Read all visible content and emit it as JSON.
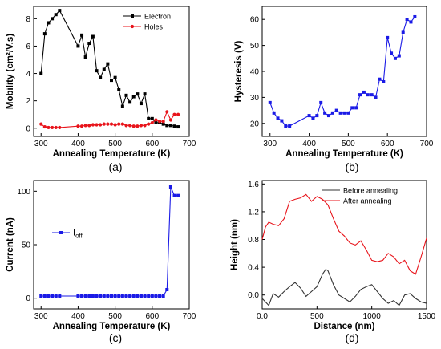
{
  "chart_data": [
    {
      "type": "line",
      "panel_label": "(a)",
      "xlabel": "Annealing Temperature (K)",
      "ylabel": "Mobility (cm²/V.s)",
      "xlim": [
        280,
        700
      ],
      "ylim": [
        -0.6,
        8.9
      ],
      "xticks": [
        300,
        400,
        500,
        600,
        700
      ],
      "yticks": [
        0,
        2,
        4,
        6,
        8
      ],
      "legend_position": "top-right",
      "series": [
        {
          "name": "Electron",
          "color": "#000000",
          "marker": "square",
          "x": [
            300,
            310,
            320,
            330,
            340,
            350,
            400,
            410,
            420,
            430,
            440,
            450,
            460,
            470,
            480,
            490,
            500,
            510,
            520,
            530,
            540,
            550,
            560,
            570,
            580,
            590,
            600,
            610,
            620,
            630,
            640,
            650,
            660,
            670
          ],
          "y": [
            4.0,
            6.9,
            7.7,
            8.0,
            8.3,
            8.6,
            6.0,
            6.8,
            5.2,
            6.2,
            6.7,
            4.2,
            3.7,
            4.3,
            4.7,
            3.5,
            3.7,
            2.8,
            1.6,
            2.4,
            1.9,
            2.3,
            2.5,
            1.8,
            2.5,
            0.7,
            0.7,
            0.4,
            0.4,
            0.3,
            0.2,
            0.2,
            0.15,
            0.1
          ]
        },
        {
          "name": "Holes",
          "color": "#e8141b",
          "marker": "circle",
          "x": [
            300,
            310,
            320,
            330,
            340,
            350,
            400,
            410,
            420,
            430,
            440,
            450,
            460,
            470,
            480,
            490,
            500,
            510,
            520,
            530,
            540,
            550,
            560,
            570,
            580,
            590,
            600,
            610,
            620,
            630,
            640,
            650,
            660,
            670
          ],
          "y": [
            0.3,
            0.1,
            0.05,
            0.05,
            0.05,
            0.05,
            0.15,
            0.15,
            0.2,
            0.2,
            0.25,
            0.25,
            0.25,
            0.3,
            0.3,
            0.3,
            0.25,
            0.3,
            0.3,
            0.2,
            0.2,
            0.15,
            0.15,
            0.2,
            0.2,
            0.3,
            0.4,
            0.6,
            0.5,
            0.5,
            1.2,
            0.6,
            1.0,
            1.0
          ]
        }
      ]
    },
    {
      "type": "line",
      "panel_label": "(b)",
      "xlabel": "Annealing Temperature (K)",
      "ylabel": "Hysteresis (V)",
      "xlim": [
        280,
        700
      ],
      "ylim": [
        15,
        65
      ],
      "xticks": [
        300,
        400,
        500,
        600,
        700
      ],
      "yticks": [
        20,
        30,
        40,
        50,
        60
      ],
      "series": [
        {
          "name": "",
          "color": "#1a1ae6",
          "marker": "square",
          "x": [
            300,
            310,
            320,
            330,
            340,
            350,
            400,
            410,
            420,
            430,
            440,
            450,
            460,
            470,
            480,
            490,
            500,
            510,
            520,
            530,
            540,
            550,
            560,
            570,
            580,
            590,
            600,
            610,
            620,
            630,
            640,
            650,
            660,
            670
          ],
          "y": [
            28,
            24,
            22,
            21,
            19,
            19,
            23,
            22,
            23,
            28,
            24,
            23,
            24,
            25,
            24,
            24,
            24,
            26,
            26,
            31,
            32,
            31,
            31,
            30,
            37,
            36,
            53,
            47,
            45,
            46,
            55,
            60,
            59,
            61
          ]
        }
      ]
    },
    {
      "type": "line",
      "panel_label": "(c)",
      "xlabel": "Annealing Temperature (K)",
      "ylabel": "Current (nA)",
      "xlim": [
        280,
        700
      ],
      "ylim": [
        -10,
        110
      ],
      "xticks": [
        300,
        400,
        500,
        600,
        700
      ],
      "yticks": [
        0,
        50,
        100
      ],
      "legend_position": "middle-left",
      "series": [
        {
          "name": "I",
          "name_subscript": "off",
          "color": "#1a1ae6",
          "marker": "square",
          "x": [
            300,
            310,
            320,
            330,
            340,
            350,
            400,
            410,
            420,
            430,
            440,
            450,
            460,
            470,
            480,
            490,
            500,
            510,
            520,
            530,
            540,
            550,
            560,
            570,
            580,
            590,
            600,
            610,
            620,
            630,
            640,
            650,
            660,
            670
          ],
          "y": [
            2,
            2,
            2,
            2,
            2,
            2,
            2,
            2,
            2,
            2,
            2,
            2,
            2,
            2,
            2,
            2,
            2,
            2,
            2,
            2,
            2,
            2,
            2,
            2,
            2,
            2,
            2,
            2,
            2,
            2,
            8,
            104,
            96,
            96
          ]
        }
      ]
    },
    {
      "type": "line",
      "panel_label": "(d)",
      "xlabel": "Distance (nm)",
      "ylabel": "Height (nm)",
      "xlim": [
        0,
        1500
      ],
      "ylim": [
        -0.2,
        1.65
      ],
      "xticks": [
        0,
        500,
        1000,
        1500
      ],
      "yticks": [
        0.0,
        0.4,
        0.8,
        1.2,
        1.6
      ],
      "legend_position": "top-right",
      "series": [
        {
          "name": "Before annealing",
          "color": "#333333",
          "x": [
            0,
            30,
            60,
            100,
            150,
            200,
            250,
            300,
            350,
            400,
            450,
            500,
            550,
            580,
            600,
            650,
            700,
            750,
            800,
            850,
            900,
            950,
            1000,
            1050,
            1100,
            1150,
            1200,
            1250,
            1300,
            1350,
            1400,
            1450,
            1500
          ],
          "y": [
            -0.05,
            -0.1,
            -0.15,
            0.02,
            -0.03,
            0.05,
            0.12,
            0.18,
            0.1,
            -0.02,
            0.05,
            0.12,
            0.3,
            0.37,
            0.35,
            0.15,
            0.0,
            -0.05,
            -0.1,
            -0.02,
            0.08,
            0.12,
            0.15,
            0.05,
            -0.05,
            -0.12,
            -0.08,
            -0.15,
            0.0,
            0.02,
            -0.05,
            -0.1,
            -0.12
          ]
        },
        {
          "name": "After annealing",
          "color": "#e8141b",
          "x": [
            0,
            30,
            60,
            100,
            150,
            200,
            250,
            300,
            350,
            400,
            450,
            500,
            550,
            600,
            650,
            700,
            750,
            800,
            850,
            900,
            950,
            1000,
            1050,
            1100,
            1150,
            1200,
            1250,
            1300,
            1350,
            1400,
            1450,
            1500
          ],
          "y": [
            0.8,
            0.98,
            1.05,
            1.02,
            1.0,
            1.1,
            1.35,
            1.38,
            1.4,
            1.45,
            1.35,
            1.42,
            1.38,
            1.3,
            1.1,
            0.92,
            0.85,
            0.75,
            0.72,
            0.78,
            0.65,
            0.5,
            0.48,
            0.5,
            0.6,
            0.55,
            0.45,
            0.5,
            0.35,
            0.3,
            0.55,
            0.82
          ]
        }
      ]
    }
  ]
}
